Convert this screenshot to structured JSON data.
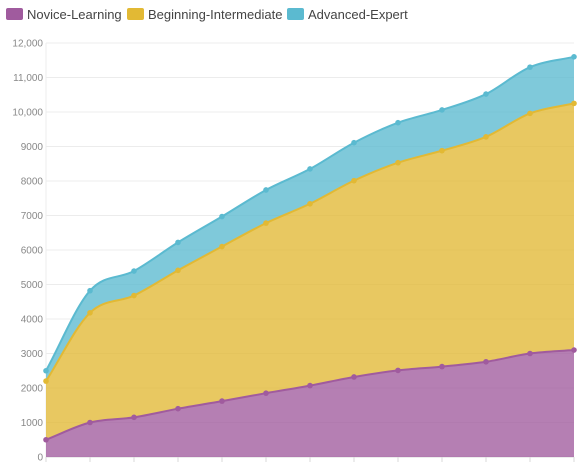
{
  "chart_data": {
    "type": "area",
    "stacked": true,
    "legend_position": "top-left",
    "grid": true,
    "ylim": [
      0,
      12000
    ],
    "y_ticks": [
      "0",
      "1000",
      "2000",
      "3000",
      "4000",
      "5000",
      "6000",
      "7000",
      "8000",
      "9000",
      "10,000",
      "11,000",
      "12,000"
    ],
    "x_count": 13,
    "series": [
      {
        "name": "Novice-Learning",
        "color": "#a05b9e",
        "values": [
          500,
          1000,
          1150,
          1400,
          1620,
          1850,
          2070,
          2320,
          2510,
          2620,
          2760,
          3000,
          3100
        ]
      },
      {
        "name": "Beginning-Intermediate",
        "color": "#e2b934",
        "values": [
          1700,
          3180,
          3530,
          4010,
          4480,
          4930,
          5270,
          5690,
          6020,
          6260,
          6520,
          6960,
          7150
        ]
      },
      {
        "name": "Advanced-Expert",
        "color": "#5bbad0",
        "values": [
          300,
          640,
          710,
          810,
          870,
          960,
          1010,
          1100,
          1160,
          1180,
          1240,
          1340,
          1350
        ]
      }
    ]
  }
}
